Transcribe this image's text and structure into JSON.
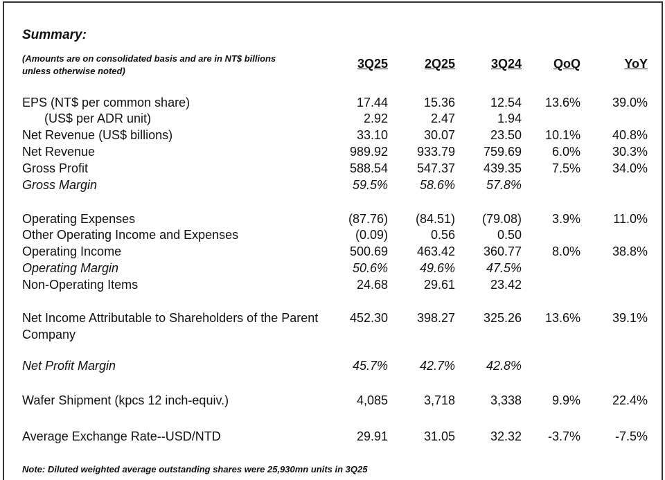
{
  "title": "Summary:",
  "subtitle": "(Amounts are on consolidated basis and are in NT$ billions unless otherwise noted)",
  "columns": [
    "3Q25",
    "2Q25",
    "3Q24",
    "QoQ",
    "YoY"
  ],
  "rows": [
    {
      "label": "EPS (NT$ per common share)",
      "cells": [
        "17.44",
        "15.36",
        "12.54",
        "13.6%",
        "39.0%"
      ]
    },
    {
      "label": "(US$ per ADR unit)",
      "indent": true,
      "cells": [
        "2.92",
        "2.47",
        "1.94",
        null,
        null
      ]
    },
    {
      "label": "Net Revenue (US$ billions)",
      "cells": [
        "33.10",
        "30.07",
        "23.50",
        "10.1%",
        "40.8%"
      ]
    },
    {
      "label": "Net Revenue",
      "cells": [
        "989.92",
        "933.79",
        "759.69",
        "6.0%",
        "30.3%"
      ]
    },
    {
      "label": "Gross Profit",
      "cells": [
        "588.54",
        "547.37",
        "439.35",
        "7.5%",
        "34.0%"
      ]
    },
    {
      "label": "Gross Margin",
      "italic": true,
      "cells": [
        "59.5%",
        "58.6%",
        "57.8%",
        null,
        null
      ]
    },
    {
      "label": "Operating Expenses",
      "cells": [
        "(87.76)",
        "(84.51)",
        "(79.08)",
        "3.9%",
        "11.0%"
      ]
    },
    {
      "label": "Other Operating Income and Expenses",
      "cells": [
        "(0.09)",
        "0.56",
        "0.50",
        null,
        null
      ]
    },
    {
      "label": "Operating Income",
      "cells": [
        "500.69",
        "463.42",
        "360.77",
        "8.0%",
        "38.8%"
      ]
    },
    {
      "label": "Operating Margin",
      "italic": true,
      "cells": [
        "50.6%",
        "49.6%",
        "47.5%",
        null,
        null
      ]
    },
    {
      "label": "Non-Operating Items",
      "cells": [
        "24.68",
        "29.61",
        "23.42",
        null,
        null
      ]
    },
    {
      "label": "Net Income Attributable to Shareholders of the Parent Company",
      "cells": [
        "452.30",
        "398.27",
        "325.26",
        "13.6%",
        "39.1%"
      ]
    },
    {
      "label": "Net Profit Margin",
      "italic": true,
      "cells": [
        "45.7%",
        "42.7%",
        "42.8%",
        null,
        null
      ]
    },
    {
      "label": "Wafer Shipment (kpcs 12 inch-equiv.)",
      "cells": [
        "4,085",
        "3,718",
        "3,338",
        "9.9%",
        "22.4%"
      ]
    },
    {
      "label": "Average Exchange Rate--USD/NTD",
      "cells": [
        "29.91",
        "31.05",
        "32.32",
        "-3.7%",
        "-7.5%"
      ]
    }
  ],
  "note": "Note: Diluted weighted average outstanding shares were 25,930mn units in 3Q25"
}
